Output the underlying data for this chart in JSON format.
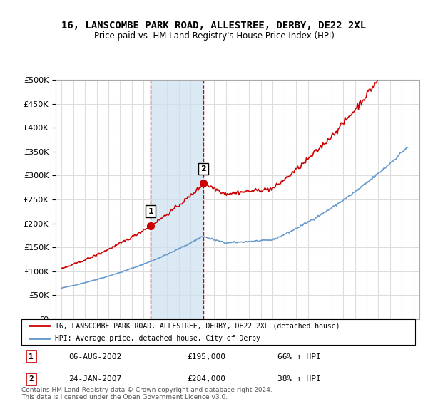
{
  "title": "16, LANSCOMBE PARK ROAD, ALLESTREE, DERBY, DE22 2XL",
  "subtitle": "Price paid vs. HM Land Registry's House Price Index (HPI)",
  "legend_line1": "16, LANSCOMBE PARK ROAD, ALLESTREE, DERBY, DE22 2XL (detached house)",
  "legend_line2": "HPI: Average price, detached house, City of Derby",
  "footer": "Contains HM Land Registry data © Crown copyright and database right 2024.\nThis data is licensed under the Open Government Licence v3.0.",
  "purchase1_date": "06-AUG-2002",
  "purchase1_price": "£195,000",
  "purchase1_pct": "66% ↑ HPI",
  "purchase2_date": "24-JAN-2007",
  "purchase2_price": "£284,000",
  "purchase2_pct": "38% ↑ HPI",
  "purchase1_x": 2002.6,
  "purchase2_x": 2007.07,
  "purchase1_y": 195000,
  "purchase2_y": 284000,
  "shade_color": "#cce0f0",
  "red_color": "#cc0000",
  "blue_color": "#6699cc",
  "grid_color": "#dddddd",
  "ylim": [
    0,
    500000
  ],
  "xlim": [
    1994.5,
    2025.5
  ]
}
